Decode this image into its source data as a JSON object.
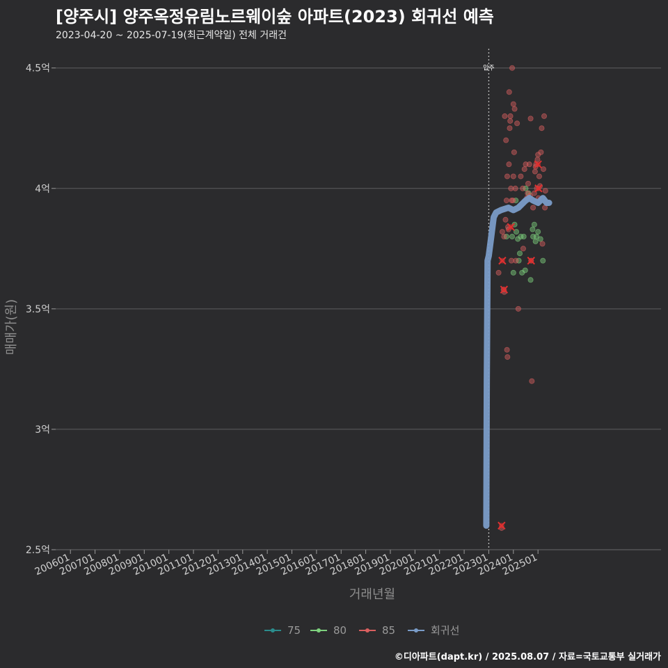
{
  "chart_data": {
    "type": "scatter",
    "title": "[양주시] 양주옥정유림노르웨이숲 아파트(2023) 회귀선 예측",
    "subtitle": "2023-04-20 ~ 2025-07-19(최근계약일) 전체 거래건",
    "xlabel": "거래년월",
    "ylabel": "매매가(원)",
    "x_ticks": [
      "200601",
      "200701",
      "200801",
      "200901",
      "201001",
      "201101",
      "201201",
      "201301",
      "201401",
      "201501",
      "201601",
      "201701",
      "201801",
      "201901",
      "202001",
      "202101",
      "202201",
      "202301",
      "202401",
      "202501"
    ],
    "y_ticks": [
      {
        "value": 2.5,
        "label": "2.5억"
      },
      {
        "value": 3.0,
        "label": "3억"
      },
      {
        "value": 3.5,
        "label": "3.5억"
      },
      {
        "value": 4.0,
        "label": "4억"
      },
      {
        "value": 4.5,
        "label": "4.5억"
      }
    ],
    "ylim": [
      2.5,
      4.58
    ],
    "xlim": [
      2005.4,
      2030.0
    ],
    "grid": true,
    "vline": {
      "x": 2023.0,
      "label": "입주"
    },
    "legend": [
      "75",
      "80",
      "85",
      "회귀선"
    ],
    "colors": {
      "75": "#2b8c8c",
      "80": "#7ed27e",
      "85": "#d95f5f",
      "regression": "#7a9cc8",
      "cross": "#e03030"
    },
    "series": [
      {
        "name": "80",
        "points": [
          [
            2023.95,
            3.8
          ],
          [
            2024.1,
            3.95
          ],
          [
            2024.12,
            3.82
          ],
          [
            2024.18,
            3.79
          ],
          [
            2024.22,
            3.7
          ],
          [
            2024.26,
            3.73
          ],
          [
            2024.3,
            3.8
          ],
          [
            2024.35,
            3.65
          ],
          [
            2024.42,
            3.8
          ],
          [
            2024.5,
            4.0
          ],
          [
            2024.62,
            3.98
          ],
          [
            2024.7,
            3.62
          ],
          [
            2024.78,
            3.83
          ],
          [
            2024.85,
            3.85
          ],
          [
            2024.9,
            3.78
          ],
          [
            2024.94,
            3.8
          ],
          [
            2025.0,
            3.82
          ],
          [
            2025.1,
            3.79
          ],
          [
            2025.2,
            3.7
          ],
          [
            2024.05,
            3.85
          ],
          [
            2024.8,
            3.8
          ],
          [
            2023.72,
            3.8
          ],
          [
            2024.0,
            3.65
          ],
          [
            2024.48,
            3.66
          ]
        ]
      },
      {
        "name": "85",
        "points": [
          [
            2023.52,
            2.59
          ],
          [
            2023.55,
            3.82
          ],
          [
            2023.6,
            3.58
          ],
          [
            2023.63,
            3.57
          ],
          [
            2023.65,
            4.3
          ],
          [
            2023.68,
            3.87
          ],
          [
            2023.72,
            3.95
          ],
          [
            2023.75,
            4.05
          ],
          [
            2023.78,
            3.84
          ],
          [
            2023.8,
            3.83
          ],
          [
            2023.82,
            4.1
          ],
          [
            2023.85,
            4.25
          ],
          [
            2023.88,
            4.3
          ],
          [
            2023.9,
            4.0
          ],
          [
            2023.92,
            3.7
          ],
          [
            2023.95,
            4.5
          ],
          [
            2023.98,
            3.95
          ],
          [
            2024.0,
            4.35
          ],
          [
            2024.03,
            4.15
          ],
          [
            2024.05,
            4.33
          ],
          [
            2024.08,
            4.0
          ],
          [
            2024.1,
            3.7
          ],
          [
            2024.15,
            4.27
          ],
          [
            2024.2,
            3.5
          ],
          [
            2024.3,
            4.05
          ],
          [
            2024.4,
            3.75
          ],
          [
            2024.45,
            4.08
          ],
          [
            2024.5,
            4.1
          ],
          [
            2024.55,
            3.96
          ],
          [
            2024.6,
            4.02
          ],
          [
            2024.65,
            4.1
          ],
          [
            2024.7,
            4.29
          ],
          [
            2024.72,
            3.7
          ],
          [
            2024.75,
            3.2
          ],
          [
            2024.8,
            3.92
          ],
          [
            2024.85,
            3.98
          ],
          [
            2024.88,
            4.07
          ],
          [
            2024.9,
            4.09
          ],
          [
            2024.92,
            4.1
          ],
          [
            2024.95,
            4.0
          ],
          [
            2024.98,
            4.12
          ],
          [
            2025.0,
            4.14
          ],
          [
            2025.02,
            3.96
          ],
          [
            2025.05,
            4.05
          ],
          [
            2025.08,
            4.01
          ],
          [
            2025.12,
            4.15
          ],
          [
            2025.15,
            4.25
          ],
          [
            2025.18,
            3.77
          ],
          [
            2025.22,
            4.08
          ],
          [
            2025.25,
            4.3
          ],
          [
            2025.28,
            3.92
          ],
          [
            2025.3,
            3.99
          ],
          [
            2023.4,
            3.65
          ],
          [
            2023.62,
            3.8
          ],
          [
            2023.7,
            4.2
          ],
          [
            2023.74,
            3.33
          ],
          [
            2023.76,
            3.3
          ],
          [
            2023.83,
            4.4
          ],
          [
            2023.87,
            4.28
          ],
          [
            2023.93,
            3.95
          ],
          [
            2024.0,
            4.05
          ],
          [
            2024.38,
            4.0
          ],
          [
            2024.58,
            3.98
          ],
          [
            2024.68,
            3.97
          ]
        ]
      }
    ],
    "crosses": [
      [
        2023.52,
        2.6
      ],
      [
        2023.55,
        3.7
      ],
      [
        2023.62,
        3.58
      ],
      [
        2023.9,
        3.84
      ],
      [
        2024.72,
        3.7
      ],
      [
        2025.0,
        4.1
      ],
      [
        2025.02,
        4.0
      ]
    ],
    "regression": [
      [
        2022.9,
        2.6
      ],
      [
        2022.92,
        3.2
      ],
      [
        2022.95,
        3.7
      ],
      [
        2023.0,
        3.72
      ],
      [
        2023.1,
        3.8
      ],
      [
        2023.2,
        3.88
      ],
      [
        2023.3,
        3.9
      ],
      [
        2023.5,
        3.91
      ],
      [
        2023.8,
        3.92
      ],
      [
        2024.0,
        3.91
      ],
      [
        2024.2,
        3.92
      ],
      [
        2024.5,
        3.95
      ],
      [
        2024.65,
        3.96
      ],
      [
        2024.8,
        3.95
      ],
      [
        2025.0,
        3.94
      ],
      [
        2025.1,
        3.95
      ],
      [
        2025.2,
        3.96
      ],
      [
        2025.35,
        3.94
      ],
      [
        2025.45,
        3.94
      ]
    ]
  },
  "footer": "©디아파트(dapt.kr) / 2025.08.07 / 자료=국토교통부 실거래가"
}
